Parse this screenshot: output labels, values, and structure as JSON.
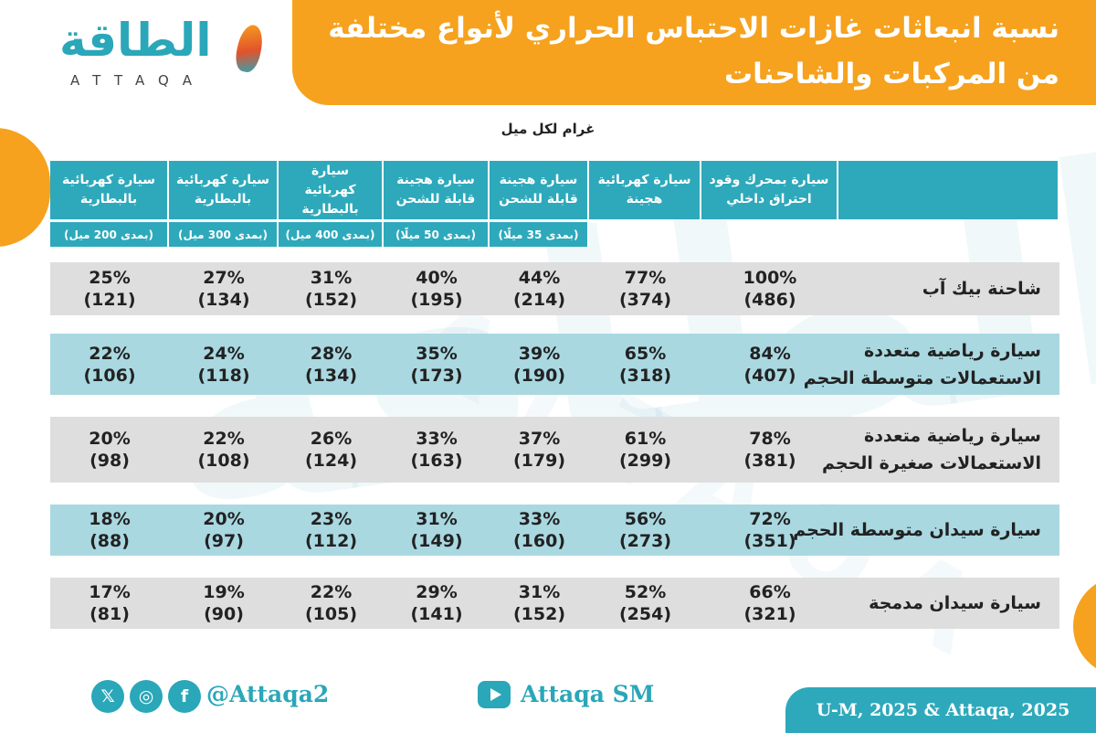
{
  "title": {
    "line1": "نسبة انبعاثات غازات الاحتباس الحراري لأنواع مختلفة",
    "line2": "من المركبات والشاحنات"
  },
  "logo": {
    "arabic": "الطاقة",
    "latin": "ATTAQA"
  },
  "unit": "غرام لكل ميل",
  "colors": {
    "accent_orange": "#f6a21e",
    "header_teal": "#2ea9bb",
    "row_gray": "#dedede",
    "row_teal": "#a9d8e1"
  },
  "chart_data": {
    "type": "table",
    "columns": [
      {
        "name": "سيارة بمحرك وقود احتراق داخلي",
        "range": ""
      },
      {
        "name": "سيارة كهربائية هجينة",
        "range": ""
      },
      {
        "name": "سيارة هجينة قابلة للشحن",
        "range": "(بمدى 35 ميلًا)"
      },
      {
        "name": "سيارة هجينة قابلة للشحن",
        "range": "(بمدى 50 ميلًا)"
      },
      {
        "name": "سيارة كهربائية بالبطارية",
        "range": "(بمدى 400 ميل)"
      },
      {
        "name": "سيارة كهربائية بالبطارية",
        "range": "(بمدى 300 ميل)"
      },
      {
        "name": "سيارة كهربائية بالبطارية",
        "range": "(بمدى 200 ميل)"
      }
    ],
    "rows": [
      {
        "label": "شاحنة بيك آب",
        "percent": [
          "100%",
          "77%",
          "44%",
          "40%",
          "31%",
          "27%",
          "25%"
        ],
        "grams": [
          "(486)",
          "(374)",
          "(214)",
          "(195)",
          "(152)",
          "(134)",
          "(121)"
        ]
      },
      {
        "label": "سيارة رياضية متعددة الاستعمالات متوسطة الحجم",
        "percent": [
          "84%",
          "65%",
          "39%",
          "35%",
          "28%",
          "24%",
          "22%"
        ],
        "grams": [
          "(407)",
          "(318)",
          "(190)",
          "(173)",
          "(134)",
          "(118)",
          "(106)"
        ]
      },
      {
        "label": "سيارة رياضية متعددة الاستعمالات صغيرة الحجم",
        "percent": [
          "78%",
          "61%",
          "37%",
          "33%",
          "26%",
          "22%",
          "20%"
        ],
        "grams": [
          "(381)",
          "(299)",
          "(179)",
          "(163)",
          "(124)",
          "(108)",
          "(98)"
        ]
      },
      {
        "label": "سيارة سيدان متوسطة الحجم",
        "percent": [
          "72%",
          "56%",
          "33%",
          "31%",
          "23%",
          "20%",
          "18%"
        ],
        "grams": [
          "(351)",
          "(273)",
          "(160)",
          "(149)",
          "(112)",
          "(97)",
          "(88)"
        ]
      },
      {
        "label": "سيارة سيدان مدمجة",
        "percent": [
          "66%",
          "52%",
          "31%",
          "29%",
          "22%",
          "19%",
          "17%"
        ],
        "grams": [
          "(321)",
          "(254)",
          "(152)",
          "(141)",
          "(105)",
          "(90)",
          "(81)"
        ]
      }
    ]
  },
  "footer": {
    "social_icons": [
      "x-icon",
      "instagram-icon",
      "facebook-icon"
    ],
    "handle": "@Attaqa2",
    "youtube_icon": "youtube-icon",
    "youtube_channel": "Attaqa SM",
    "source": "U-M, 2025 & Attaqa, 2025"
  }
}
